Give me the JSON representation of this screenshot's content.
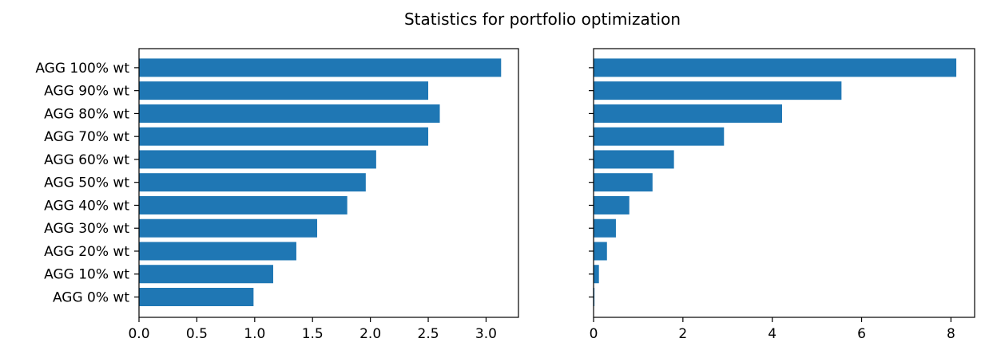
{
  "title": "Statistics for portfolio optimization",
  "chart_data": [
    {
      "type": "bar",
      "orientation": "horizontal",
      "categories": [
        "AGG 0% wt",
        "AGG 10% wt",
        "AGG 20% wt",
        "AGG 30% wt",
        "AGG 40% wt",
        "AGG 50% wt",
        "AGG 60% wt",
        "AGG 70% wt",
        "AGG 80% wt",
        "AGG 90% wt",
        "AGG 100% wt"
      ],
      "values": [
        0.99,
        1.16,
        1.36,
        1.54,
        1.8,
        1.96,
        2.05,
        2.5,
        2.6,
        2.5,
        3.13
      ],
      "xlim": [
        0,
        3.28
      ],
      "xticks": [
        0.0,
        0.5,
        1.0,
        1.5,
        2.0,
        2.5,
        3.0
      ],
      "xtick_labels": [
        "0.0",
        "0.5",
        "1.0",
        "1.5",
        "2.0",
        "2.5",
        "3.0"
      ],
      "bar_color": "#1f77b4",
      "grid": false
    },
    {
      "type": "bar",
      "orientation": "horizontal",
      "categories": [
        "AGG 0% wt",
        "AGG 10% wt",
        "AGG 20% wt",
        "AGG 30% wt",
        "AGG 40% wt",
        "AGG 50% wt",
        "AGG 60% wt",
        "AGG 70% wt",
        "AGG 80% wt",
        "AGG 90% wt",
        "AGG 100% wt"
      ],
      "values": [
        0.02,
        0.12,
        0.3,
        0.5,
        0.8,
        1.32,
        1.8,
        2.92,
        4.22,
        5.55,
        8.12
      ],
      "xlim": [
        0,
        8.53
      ],
      "xticks": [
        0,
        2,
        4,
        6,
        8
      ],
      "xtick_labels": [
        "0",
        "2",
        "4",
        "6",
        "8"
      ],
      "bar_color": "#1f77b4",
      "grid": false,
      "ytick_labels_shown": false
    }
  ]
}
